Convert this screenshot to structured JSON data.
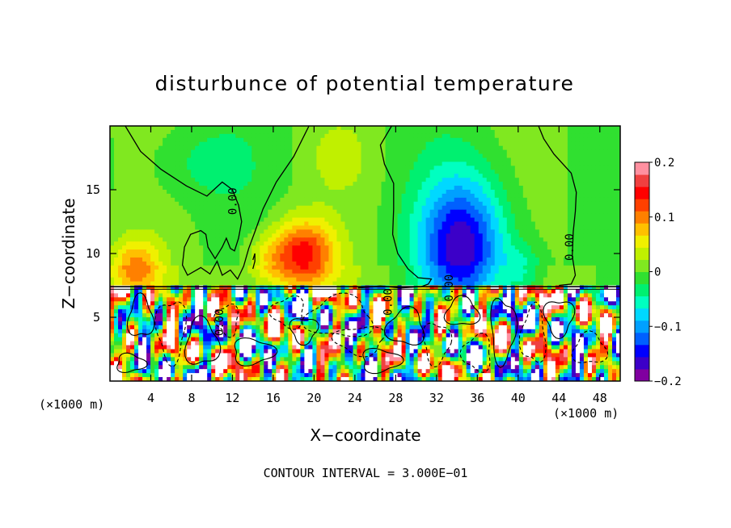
{
  "chart_data": {
    "type": "heatmap",
    "title": "disturbunce of potential temperature",
    "xlabel": "X−coordinate",
    "ylabel": "Z−coordinate",
    "x_unit_left": "(×1000 m)",
    "x_unit_right": "(×1000 m)",
    "xlim": [
      0,
      50
    ],
    "ylim": [
      0,
      20
    ],
    "x_ticks": [
      4,
      8,
      12,
      16,
      20,
      24,
      28,
      32,
      36,
      40,
      44,
      48
    ],
    "y_ticks": [
      5,
      10,
      15
    ],
    "colorbar": {
      "vmin": -0.2,
      "vmax": 0.2,
      "tick_values": [
        0.2,
        0.1,
        0,
        -0.1,
        -0.2
      ],
      "tick_labels": [
        "0.2",
        "0.1",
        "0",
        "−0.1",
        "−0.2"
      ],
      "colors": [
        "#8000a0",
        "#3c00c8",
        "#0000ff",
        "#0060ff",
        "#00a0ff",
        "#00d8ff",
        "#00ffc0",
        "#00f070",
        "#30e030",
        "#80e820",
        "#c0f000",
        "#f0f000",
        "#ffc000",
        "#ff8000",
        "#ff4000",
        "#ff0000",
        "#f04040",
        "#ff90a0"
      ]
    },
    "contour_labels": [
      "0.00",
      "0.00",
      "0.00",
      "0.00",
      "0.00"
    ],
    "contour_label_positions": [
      [
        12.4,
        14.1
      ],
      [
        45.4,
        10.5
      ],
      [
        11.1,
        4.6
      ],
      [
        33.6,
        7.3
      ],
      [
        27.6,
        6.2
      ]
    ],
    "features": [
      {
        "x": 19.0,
        "z": 10.0,
        "sx": 3.0,
        "sz": 2.6,
        "a": 0.14
      },
      {
        "x": 2.5,
        "z": 8.9,
        "sx": 2.5,
        "sz": 2.2,
        "a": 0.09
      },
      {
        "x": 15.5,
        "z": 9.5,
        "sx": 2.2,
        "sz": 2.0,
        "a": 0.05
      },
      {
        "x": 34.5,
        "z": 10.5,
        "sx": 4.2,
        "sz": 5.5,
        "a": -0.17
      },
      {
        "x": 40.5,
        "z": 8.5,
        "sx": 2.0,
        "sz": 2.2,
        "a": -0.05
      },
      {
        "x": 9.0,
        "z": 17.0,
        "sx": 5.0,
        "sz": 3.0,
        "a": -0.03
      },
      {
        "x": 22.5,
        "z": 17.5,
        "sx": 3.0,
        "sz": 2.5,
        "a": 0.025
      }
    ],
    "footer": "CONTOUR INTERVAL = 3.000E−01"
  }
}
